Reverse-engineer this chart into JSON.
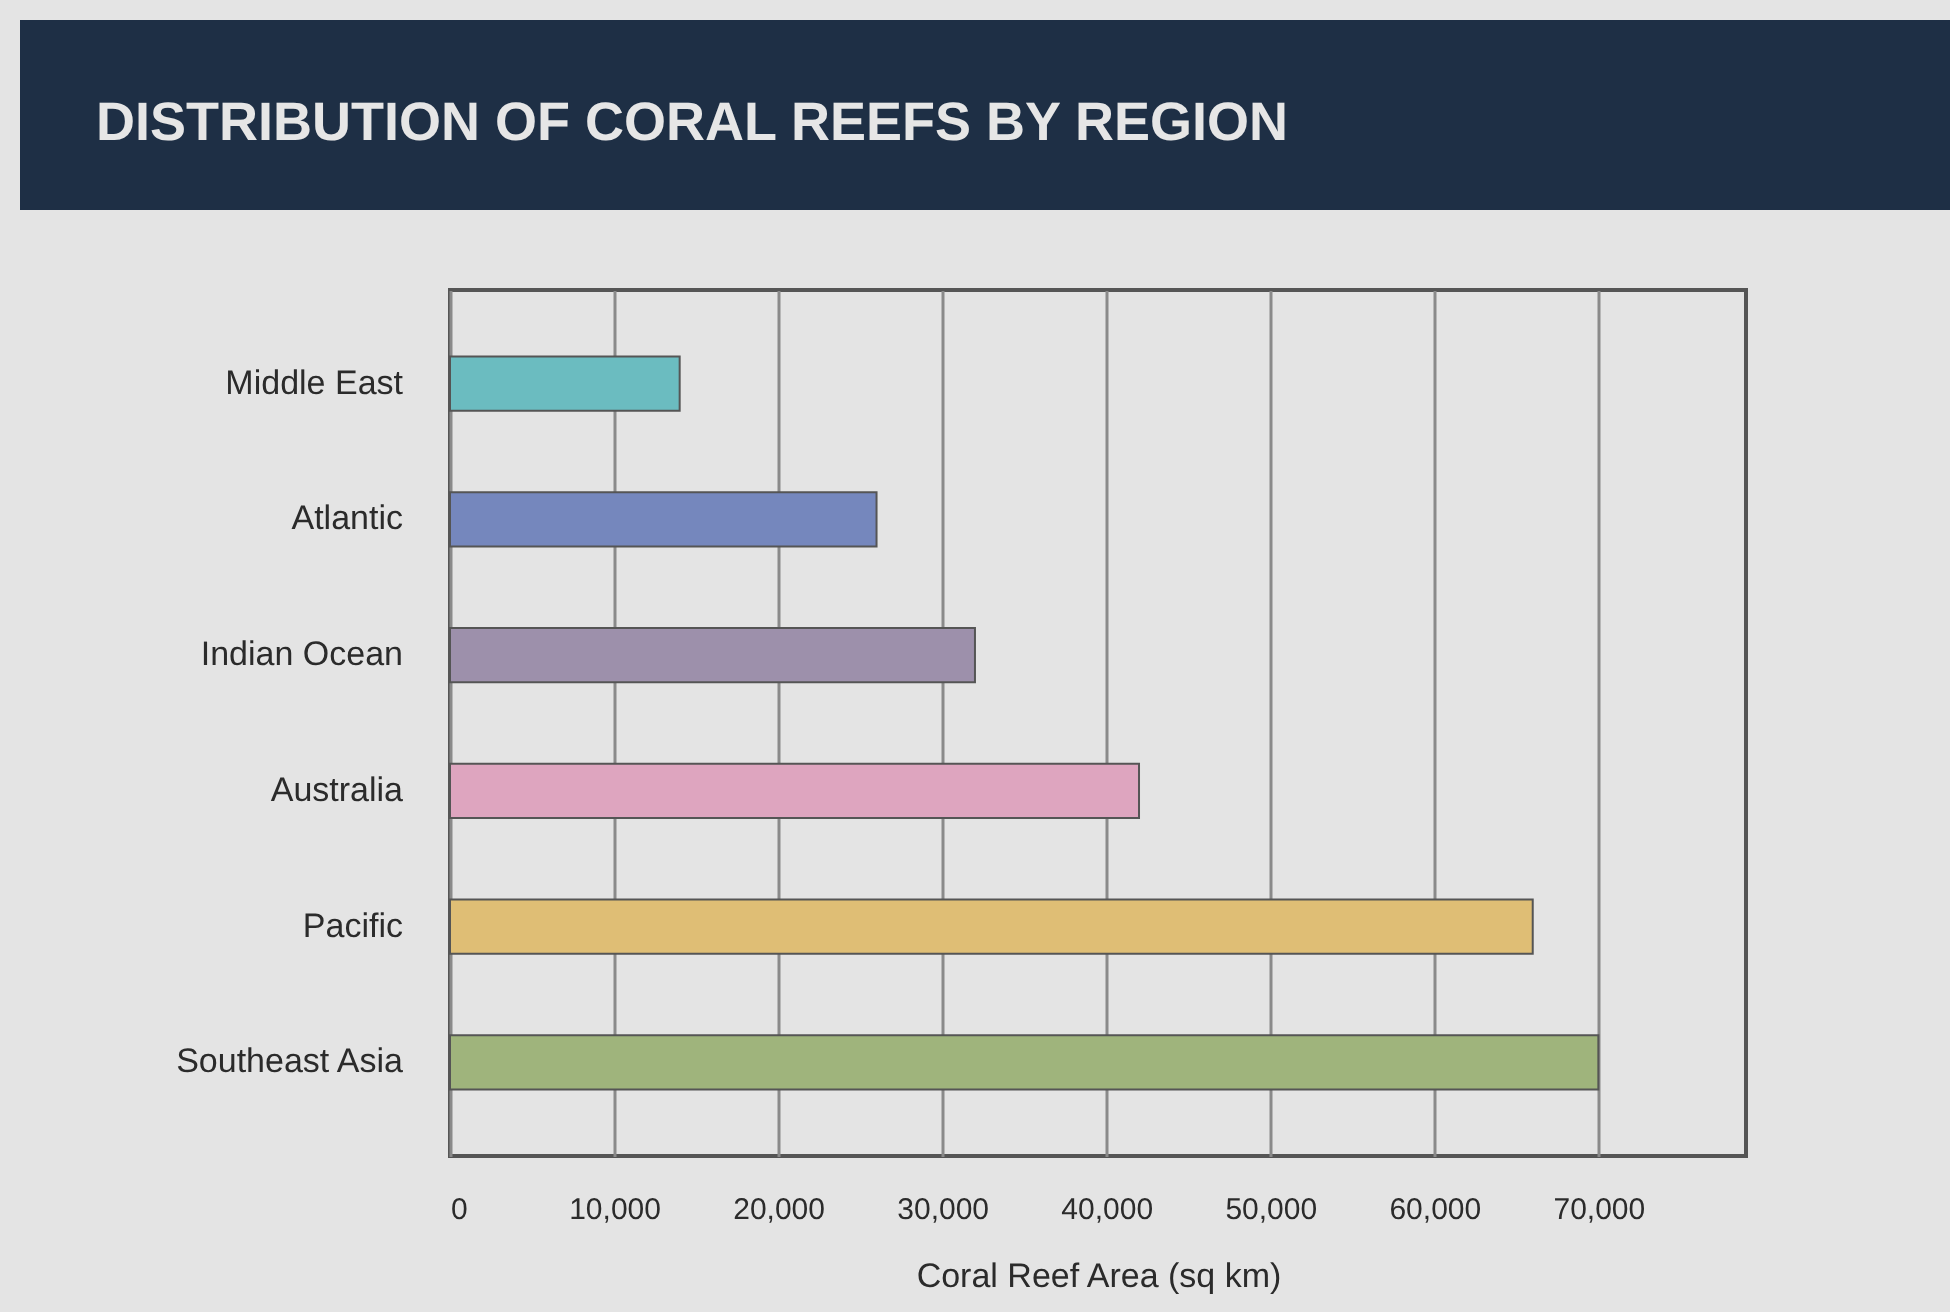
{
  "chart_data": {
    "type": "bar",
    "orientation": "horizontal",
    "title": "DISTRIBUTION OF CORAL REEFS BY REGION",
    "xlabel": "Coral Reef Area (sq km)",
    "categories": [
      "Middle East",
      "Atlantic",
      "Indian Ocean",
      "Australia",
      "Pacific",
      "Southeast Asia"
    ],
    "values": [
      14000,
      26000,
      32000,
      42000,
      66000,
      70000
    ],
    "colors": [
      "#6bbcc0",
      "#7587bd",
      "#9d90ab",
      "#dea5bf",
      "#dfbe75",
      "#9fb47c"
    ],
    "xlim": [
      0,
      79000
    ],
    "xticks": [
      0,
      {
        "value": 10000,
        "label": "10,000"
      },
      {
        "value": 20000,
        "label": "20,000"
      },
      {
        "value": 30000,
        "label": "30,000"
      },
      {
        "value": 40000,
        "label": "40,000"
      },
      {
        "value": 50000,
        "label": "50,000"
      },
      {
        "value": 60000,
        "label": "60,000"
      },
      {
        "value": 70000,
        "label": "70,000"
      }
    ],
    "grid": "x",
    "legend": false
  }
}
